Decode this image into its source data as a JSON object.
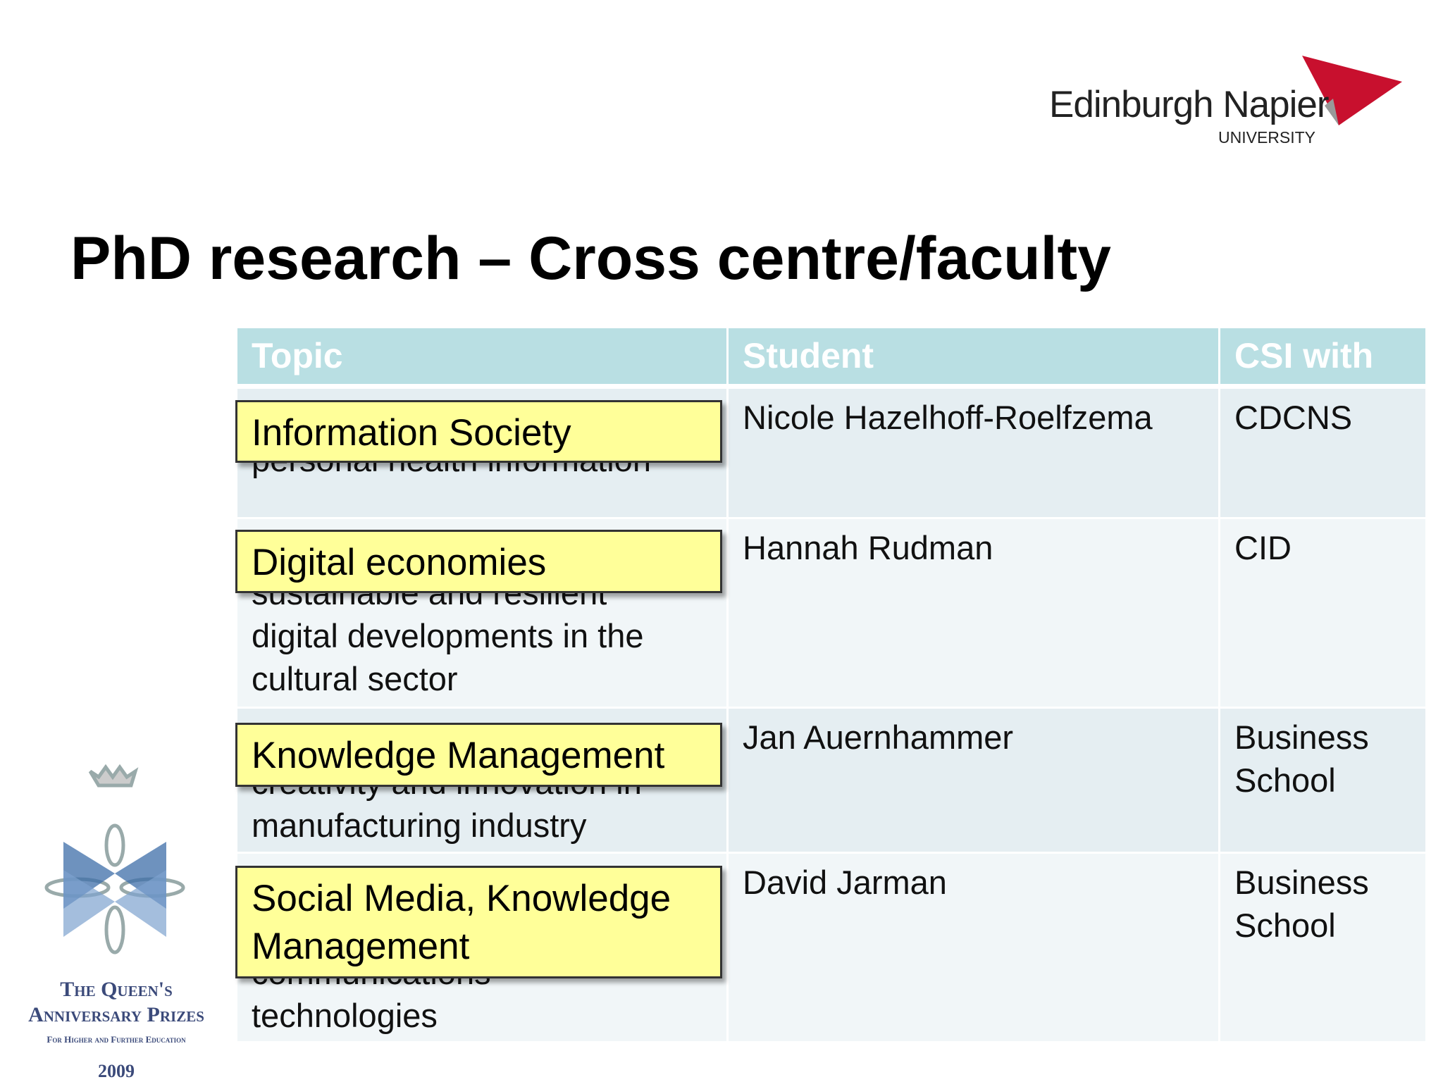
{
  "logo": {
    "name": "Edinburgh Napier",
    "subtitle": "UNIVERSITY"
  },
  "title": "PhD research – Cross centre/faculty",
  "table": {
    "header": [
      "Topic",
      "Student",
      "CSI with"
    ],
    "rows": [
      {
        "label": [
          "Information Society"
        ],
        "topic": [
          "personal health information"
        ],
        "student": [
          "Nicole Hazelhoff-Roelfzema"
        ],
        "csi": [
          "CDCNS"
        ]
      },
      {
        "label": [
          "Digital economies"
        ],
        "topic": [
          "sustainable and resilient",
          "digital developments in the",
          "cultural sector"
        ],
        "student": [
          "Hannah Rudman"
        ],
        "csi": [
          "CID"
        ]
      },
      {
        "label": [
          "Knowledge Management"
        ],
        "topic": [
          "creativity and innovation in",
          "manufacturing industry"
        ],
        "student": [
          "Jan Auernhammer"
        ],
        "csi": [
          "Business",
          "School"
        ]
      },
      {
        "label": [
          "Social Media, Knowledge",
          "Management"
        ],
        "topic": [
          "communications",
          "technologies"
        ],
        "student": [
          "David Jarman"
        ],
        "csi": [
          "Business",
          "School"
        ]
      }
    ]
  },
  "award": {
    "lines": [
      "The Queen's",
      "Anniversary Prizes",
      "For Higher and Further Education",
      "2009"
    ]
  }
}
